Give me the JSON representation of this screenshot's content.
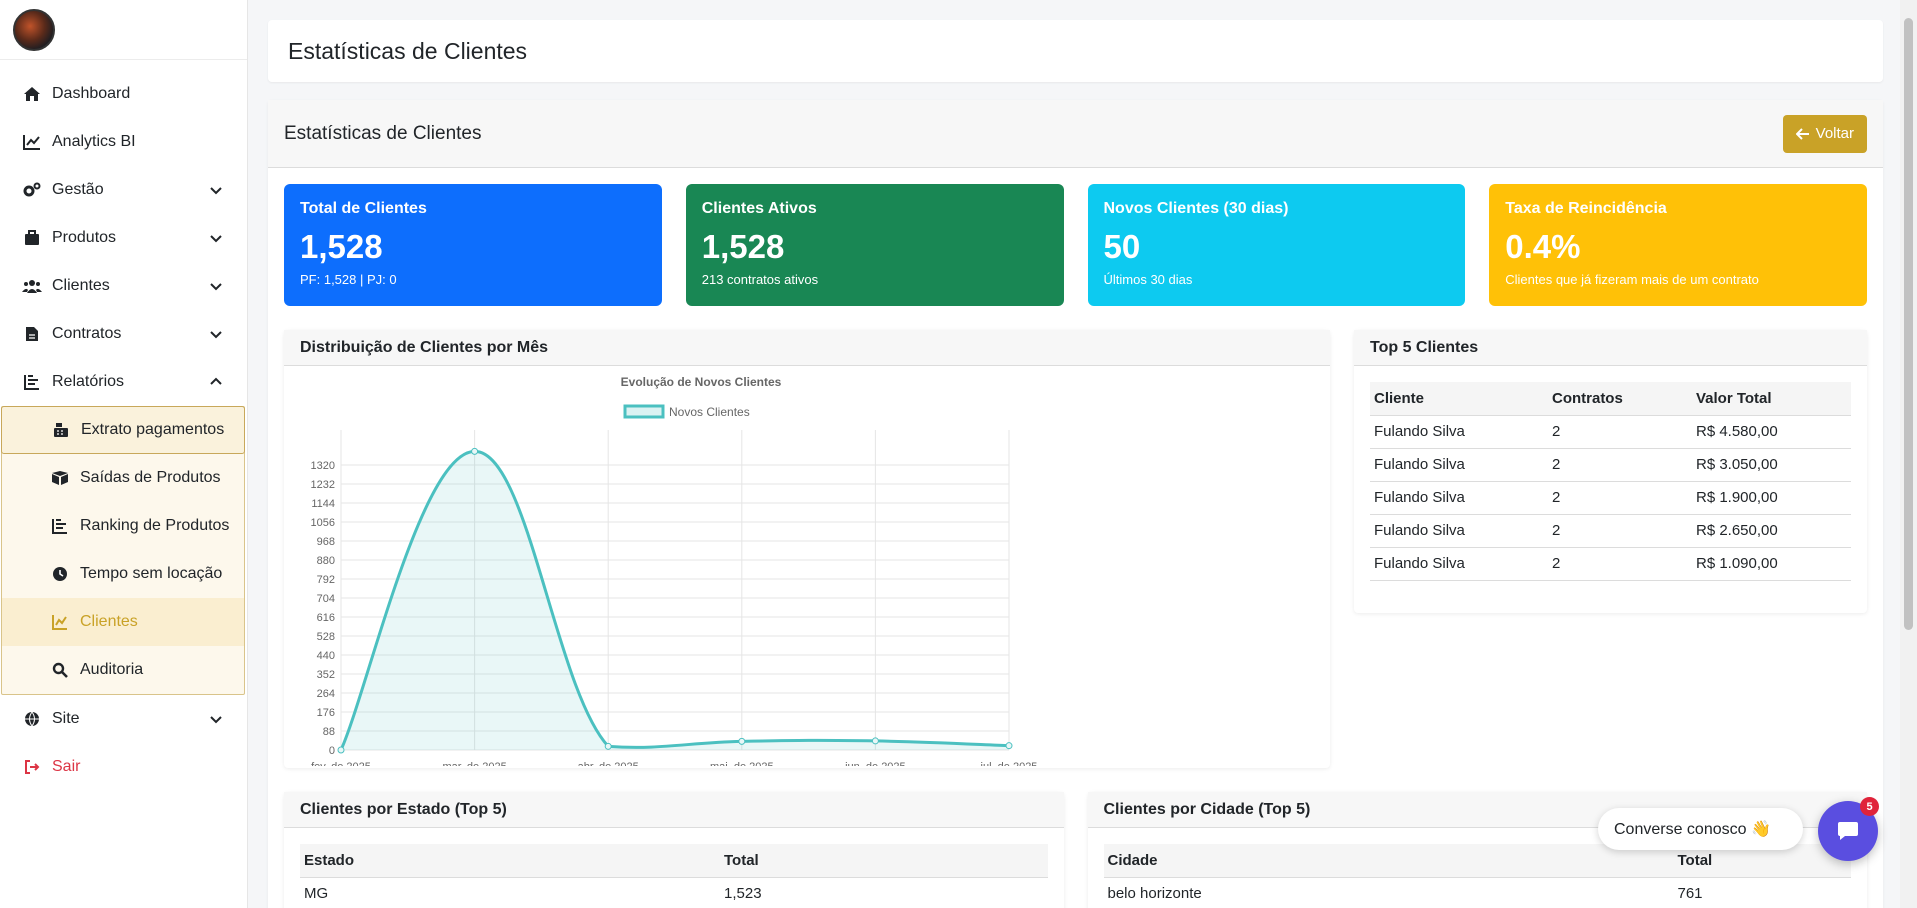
{
  "sidebar": {
    "items": [
      {
        "label": "Dashboard",
        "icon": "home-icon"
      },
      {
        "label": "Analytics BI",
        "icon": "chart-line-icon"
      },
      {
        "label": "Gestão",
        "icon": "cogs-icon"
      },
      {
        "label": "Produtos",
        "icon": "box-icon"
      },
      {
        "label": "Clientes",
        "icon": "users-icon"
      },
      {
        "label": "Contratos",
        "icon": "file-icon"
      },
      {
        "label": "Relatórios",
        "icon": "chart-bar-icon"
      }
    ],
    "reports_sub": [
      {
        "label": "Extrato pagamentos",
        "icon": "cash-register-icon"
      },
      {
        "label": "Saídas de Produtos",
        "icon": "boxes-icon"
      },
      {
        "label": "Ranking de Produtos",
        "icon": "chart-bar-icon"
      },
      {
        "label": "Tempo sem locação",
        "icon": "clock-icon"
      },
      {
        "label": "Clientes",
        "icon": "chart-line-icon"
      },
      {
        "label": "Auditoria",
        "icon": "search-icon"
      }
    ],
    "site_label": "Site",
    "logout_label": "Sair"
  },
  "header": {
    "title": "Estatísticas de Clientes"
  },
  "card": {
    "title": "Estatísticas de Clientes",
    "back_label": "Voltar"
  },
  "stats": [
    {
      "title": "Total de Clientes",
      "value": "1,528",
      "sub": "PF: 1,528 | PJ: 0",
      "color": "#0d6efd"
    },
    {
      "title": "Clientes Ativos",
      "value": "1,528",
      "sub": "213 contratos ativos",
      "color": "#198754"
    },
    {
      "title": "Novos Clientes (30 dias)",
      "value": "50",
      "sub": "Últimos 30 dias",
      "color": "#0dcaf0"
    },
    {
      "title": "Taxa de Reincidência",
      "value": "0.4%",
      "sub": "Clientes que já fizeram mais de um contrato",
      "color": "#ffc107"
    }
  ],
  "chart_panel": {
    "title": "Distribuição de Clientes por Mês"
  },
  "chart_data": {
    "type": "line",
    "title": "Evolução de Novos Clientes",
    "series": [
      {
        "name": "Novos Clientes",
        "values": [
          0,
          1383,
          17,
          40,
          42,
          20
        ]
      }
    ],
    "categories": [
      "fev. de 2025",
      "mar. de 2025",
      "abr. de 2025",
      "mai. de 2025",
      "jun. de 2025",
      "jul. de 2025"
    ],
    "yticks": [
      0,
      88,
      176,
      264,
      352,
      440,
      528,
      616,
      704,
      792,
      880,
      968,
      1056,
      1144,
      1232,
      1320
    ],
    "ylim": [
      0,
      1408
    ],
    "color": "#4bc0c0",
    "xlabel": "",
    "ylabel": ""
  },
  "top5": {
    "title": "Top 5 Clientes",
    "columns": [
      "Cliente",
      "Contratos",
      "Valor Total"
    ],
    "rows": [
      [
        "Fulando Silva",
        "2",
        "R$ 4.580,00"
      ],
      [
        "Fulando Silva",
        "2",
        "R$ 3.050,00"
      ],
      [
        "Fulando Silva",
        "2",
        "R$ 1.900,00"
      ],
      [
        "Fulando Silva",
        "2",
        "R$ 2.650,00"
      ],
      [
        "Fulando Silva",
        "2",
        "R$ 1.090,00"
      ]
    ]
  },
  "by_state": {
    "title": "Clientes por Estado (Top 5)",
    "columns": [
      "Estado",
      "Total"
    ],
    "rows": [
      [
        "MG",
        "1,523"
      ]
    ]
  },
  "by_city": {
    "title": "Clientes por Cidade (Top 5)",
    "columns": [
      "Cidade",
      "Total"
    ],
    "rows": [
      [
        "belo horizonte",
        "761"
      ]
    ]
  },
  "chat": {
    "label": "Converse conosco 👋",
    "badge": "5"
  }
}
